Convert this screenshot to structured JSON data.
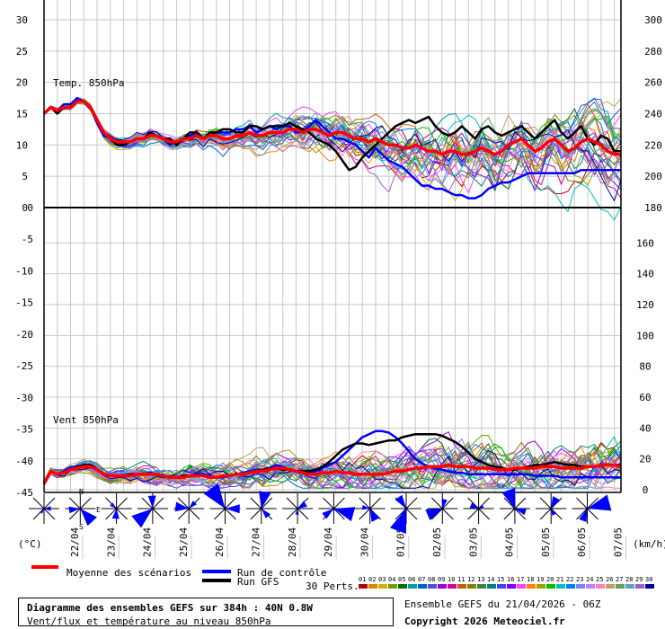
{
  "chart_data": [
    {
      "type": "line",
      "title": "Temp. 850hPa",
      "ylim": [
        0,
        30
      ],
      "yticks_left": [
        0,
        5,
        10,
        15,
        20,
        25,
        30
      ],
      "ylim_right": [
        180,
        300
      ],
      "yticks_right": [
        180,
        200,
        220,
        240,
        260,
        280,
        300
      ],
      "grid": true,
      "x_step_hours": 6,
      "series": [
        {
          "name": "Moyenne des scénarios",
          "color": "#ff0000",
          "values": [
            15,
            16,
            15.5,
            16,
            16,
            17,
            17,
            16,
            14,
            12,
            11,
            10.5,
            10.5,
            10.5,
            11,
            11,
            11.5,
            11.5,
            11,
            10.5,
            10.5,
            11,
            11,
            11.5,
            11,
            11.5,
            11.5,
            11,
            11,
            11.5,
            11.5,
            12,
            11.5,
            11.5,
            12,
            12,
            12,
            12.5,
            12.5,
            12,
            12.5,
            12.5,
            12,
            11.5,
            12,
            12,
            11.5,
            11,
            11,
            10.5,
            11,
            10.5,
            10,
            10,
            9.5,
            9.5,
            10,
            9.5,
            9,
            9,
            8.5,
            9,
            9,
            8.5,
            8.5,
            9,
            9.5,
            9,
            8.5,
            9,
            10,
            10.5,
            11,
            10,
            9,
            9.5,
            10.5,
            11,
            10,
            9,
            9.5,
            10.5,
            11,
            10.5,
            10,
            9,
            8.5,
            8.5
          ]
        },
        {
          "name": "Run de contrôle",
          "color": "#0000ff",
          "values": [
            15,
            16,
            15.5,
            16.5,
            16.5,
            17.5,
            17,
            16,
            13.5,
            11.5,
            11,
            10.5,
            10,
            10.5,
            11,
            11,
            11.5,
            11.5,
            11,
            10,
            10.5,
            11,
            11.5,
            12,
            11,
            11.5,
            12,
            12,
            12,
            12.5,
            12.5,
            13,
            12,
            12.5,
            13,
            12.5,
            13,
            13,
            12,
            12,
            13,
            14,
            13,
            12,
            11,
            11,
            10.5,
            10,
            9,
            8,
            9.5,
            8.5,
            7.5,
            7,
            6.5,
            5.5,
            4.5,
            3.5,
            3.5,
            3,
            3,
            2.5,
            2,
            2,
            1.5,
            1.5,
            2,
            3,
            3.5,
            4,
            4,
            4.5,
            5,
            5.5,
            5.5,
            5.5,
            5.5,
            5.5,
            5.5,
            5.5,
            5.5,
            6,
            6,
            6,
            6,
            6,
            6,
            6
          ]
        },
        {
          "name": "Run GFS",
          "color": "#000000",
          "values": [
            15,
            16,
            15,
            16,
            16,
            17,
            17,
            16,
            14,
            12,
            11,
            10,
            10,
            10.5,
            11,
            11,
            12,
            11.5,
            11,
            11,
            10,
            11,
            12,
            12,
            11,
            12,
            12,
            12.5,
            12.5,
            12,
            12,
            13,
            13,
            12.5,
            13,
            13,
            13,
            13.5,
            13,
            12.5,
            12,
            11,
            10.5,
            10,
            9,
            7.5,
            6,
            6.5,
            8,
            9,
            10,
            11,
            12,
            13,
            13.5,
            14,
            13.5,
            14,
            14.5,
            13,
            12,
            11.5,
            12,
            13,
            12,
            11,
            12.5,
            13,
            12,
            11.5,
            12,
            12.5,
            13,
            12,
            11,
            12,
            13,
            14,
            12,
            11,
            12,
            13,
            11,
            10,
            11.5,
            11,
            9,
            9
          ]
        }
      ]
    },
    {
      "type": "line",
      "title": "Vent 850hPa",
      "ylim": [
        -45,
        0
      ],
      "yticks_left": [
        -45,
        -40,
        -35,
        -30,
        -25,
        -20,
        -15,
        -10,
        -5,
        0
      ],
      "ylim_right": [
        0,
        180
      ],
      "yticks_right": [
        0,
        20,
        40,
        60,
        80,
        100,
        120,
        140,
        160,
        180
      ],
      "grid": true,
      "series": [
        {
          "name": "Moyenne des scénarios",
          "color": "#ff0000",
          "values": [
            4,
            12,
            10,
            11,
            13,
            14,
            15,
            15,
            13,
            10,
            9,
            9,
            9,
            9,
            10,
            10,
            10,
            10,
            9,
            8,
            8,
            8,
            9,
            9,
            9,
            8,
            8,
            9,
            9,
            10,
            10,
            11,
            12,
            12,
            13,
            14,
            14,
            13,
            12,
            11,
            10,
            10,
            11,
            11,
            12,
            11,
            11,
            10,
            10,
            10,
            10,
            10,
            11,
            12,
            12,
            13,
            14,
            14,
            15,
            15,
            15,
            16,
            15,
            15,
            15,
            14,
            14,
            14,
            13,
            13,
            13,
            14,
            14,
            14,
            14,
            15,
            15,
            15,
            14,
            14,
            14,
            14,
            15,
            15,
            16,
            16,
            16,
            15
          ]
        },
        {
          "name": "Run de contrôle",
          "color": "#0000ff",
          "values": [
            4,
            12,
            10,
            12,
            14,
            15,
            16,
            16,
            13,
            10,
            9,
            9,
            9,
            10,
            10,
            10,
            11,
            10,
            9,
            8,
            8,
            9,
            9,
            10,
            10,
            9,
            8,
            8,
            9,
            10,
            11,
            12,
            13,
            13,
            14,
            16,
            15,
            13,
            12,
            11,
            11,
            12,
            14,
            16,
            18,
            22,
            26,
            30,
            34,
            36,
            38,
            38,
            37,
            34,
            30,
            25,
            20,
            17,
            15,
            14,
            13,
            12,
            11,
            11,
            10,
            10,
            10,
            10,
            10,
            10,
            10,
            10,
            10,
            10,
            9,
            9,
            9,
            9,
            8,
            8,
            8,
            8,
            8,
            8,
            8,
            8,
            8,
            8
          ]
        },
        {
          "name": "Run GFS",
          "color": "#000000",
          "values": [
            4,
            12,
            10,
            11,
            13,
            15,
            16,
            16,
            13,
            10,
            9,
            9,
            9,
            10,
            10,
            10,
            10,
            10,
            9,
            8,
            8,
            9,
            9,
            9,
            9,
            8,
            8,
            9,
            9,
            10,
            10,
            11,
            12,
            13,
            14,
            14,
            13,
            13,
            12,
            12,
            12,
            13,
            15,
            18,
            22,
            26,
            28,
            30,
            30,
            29,
            30,
            31,
            32,
            32,
            34,
            35,
            36,
            36,
            36,
            36,
            35,
            33,
            31,
            28,
            24,
            20,
            18,
            16,
            15,
            14,
            13,
            13,
            14,
            15,
            16,
            16,
            17,
            18,
            17,
            16,
            16,
            15,
            15,
            15,
            16,
            16,
            16,
            16
          ]
        }
      ]
    }
  ],
  "dates": [
    "22/04",
    "23/04",
    "24/04",
    "25/04",
    "26/04",
    "27/04",
    "28/04",
    "29/04",
    "30/04",
    "01/05",
    "02/05",
    "03/05",
    "04/05",
    "05/05",
    "06/05",
    "07/05"
  ],
  "compass": {
    "n": "N",
    "s": "S",
    "e": "E"
  },
  "unit_left": "(°C)",
  "unit_right": "(km/h)",
  "legend": {
    "mean": "Moyenne des scénarios",
    "control": "Run de contrôle",
    "gfs": "Run GFS",
    "perts_label": "30 Perts.",
    "perts_numbers": [
      "01",
      "02",
      "03",
      "04",
      "05",
      "06",
      "07",
      "08",
      "09",
      "10",
      "11",
      "12",
      "13",
      "14",
      "15",
      "16",
      "17",
      "18",
      "19",
      "20",
      "21",
      "22",
      "23",
      "24",
      "25",
      "26",
      "27",
      "28",
      "29",
      "30"
    ],
    "perts_colors": [
      "#b80000",
      "#e08000",
      "#d0b000",
      "#70a000",
      "#007000",
      "#00a0a0",
      "#0060d0",
      "#5050d0",
      "#a000d0",
      "#d000a0",
      "#c06000",
      "#808000",
      "#408040",
      "#008080",
      "#4040ff",
      "#8000ff",
      "#ff40ff",
      "#ff8000",
      "#a0a000",
      "#00c000",
      "#00c0c0",
      "#0080ff",
      "#8080ff",
      "#c080ff",
      "#ff80c0",
      "#c0a060",
      "#60a060",
      "#60a0c0",
      "#a060c0",
      "#0000a0"
    ]
  },
  "info": {
    "title": "Diagramme des ensembles GEFS sur 384h : 40N 0.8W",
    "subtitle": "Vent/flux et température au niveau 850hPa",
    "ensemble": "Ensemble GEFS du 21/04/2026 - 06Z",
    "copyright": "Copyright 2026 Meteociel.fr"
  }
}
